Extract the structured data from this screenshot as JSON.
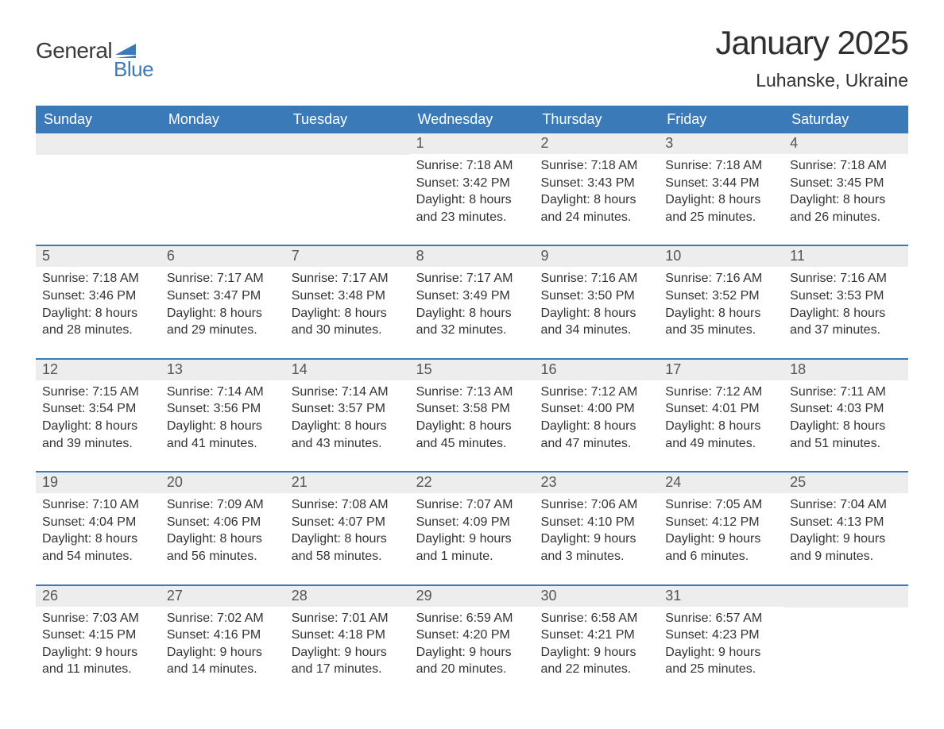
{
  "logo": {
    "text_general": "General",
    "text_blue": "Blue",
    "flag_color": "#3a7ab8"
  },
  "header": {
    "month_title": "January 2025",
    "location": "Luhanske, Ukraine"
  },
  "colors": {
    "header_bg": "#3a7ab8",
    "header_text": "#ffffff",
    "daynum_bg": "#ededed",
    "daynum_text": "#555555",
    "body_text": "#333333",
    "border": "#3a7ab8"
  },
  "weekdays": [
    "Sunday",
    "Monday",
    "Tuesday",
    "Wednesday",
    "Thursday",
    "Friday",
    "Saturday"
  ],
  "weeks": [
    [
      {
        "day": "",
        "lines": []
      },
      {
        "day": "",
        "lines": []
      },
      {
        "day": "",
        "lines": []
      },
      {
        "day": "1",
        "lines": [
          "Sunrise: 7:18 AM",
          "Sunset: 3:42 PM",
          "Daylight: 8 hours and 23 minutes."
        ]
      },
      {
        "day": "2",
        "lines": [
          "Sunrise: 7:18 AM",
          "Sunset: 3:43 PM",
          "Daylight: 8 hours and 24 minutes."
        ]
      },
      {
        "day": "3",
        "lines": [
          "Sunrise: 7:18 AM",
          "Sunset: 3:44 PM",
          "Daylight: 8 hours and 25 minutes."
        ]
      },
      {
        "day": "4",
        "lines": [
          "Sunrise: 7:18 AM",
          "Sunset: 3:45 PM",
          "Daylight: 8 hours and 26 minutes."
        ]
      }
    ],
    [
      {
        "day": "5",
        "lines": [
          "Sunrise: 7:18 AM",
          "Sunset: 3:46 PM",
          "Daylight: 8 hours and 28 minutes."
        ]
      },
      {
        "day": "6",
        "lines": [
          "Sunrise: 7:17 AM",
          "Sunset: 3:47 PM",
          "Daylight: 8 hours and 29 minutes."
        ]
      },
      {
        "day": "7",
        "lines": [
          "Sunrise: 7:17 AM",
          "Sunset: 3:48 PM",
          "Daylight: 8 hours and 30 minutes."
        ]
      },
      {
        "day": "8",
        "lines": [
          "Sunrise: 7:17 AM",
          "Sunset: 3:49 PM",
          "Daylight: 8 hours and 32 minutes."
        ]
      },
      {
        "day": "9",
        "lines": [
          "Sunrise: 7:16 AM",
          "Sunset: 3:50 PM",
          "Daylight: 8 hours and 34 minutes."
        ]
      },
      {
        "day": "10",
        "lines": [
          "Sunrise: 7:16 AM",
          "Sunset: 3:52 PM",
          "Daylight: 8 hours and 35 minutes."
        ]
      },
      {
        "day": "11",
        "lines": [
          "Sunrise: 7:16 AM",
          "Sunset: 3:53 PM",
          "Daylight: 8 hours and 37 minutes."
        ]
      }
    ],
    [
      {
        "day": "12",
        "lines": [
          "Sunrise: 7:15 AM",
          "Sunset: 3:54 PM",
          "Daylight: 8 hours and 39 minutes."
        ]
      },
      {
        "day": "13",
        "lines": [
          "Sunrise: 7:14 AM",
          "Sunset: 3:56 PM",
          "Daylight: 8 hours and 41 minutes."
        ]
      },
      {
        "day": "14",
        "lines": [
          "Sunrise: 7:14 AM",
          "Sunset: 3:57 PM",
          "Daylight: 8 hours and 43 minutes."
        ]
      },
      {
        "day": "15",
        "lines": [
          "Sunrise: 7:13 AM",
          "Sunset: 3:58 PM",
          "Daylight: 8 hours and 45 minutes."
        ]
      },
      {
        "day": "16",
        "lines": [
          "Sunrise: 7:12 AM",
          "Sunset: 4:00 PM",
          "Daylight: 8 hours and 47 minutes."
        ]
      },
      {
        "day": "17",
        "lines": [
          "Sunrise: 7:12 AM",
          "Sunset: 4:01 PM",
          "Daylight: 8 hours and 49 minutes."
        ]
      },
      {
        "day": "18",
        "lines": [
          "Sunrise: 7:11 AM",
          "Sunset: 4:03 PM",
          "Daylight: 8 hours and 51 minutes."
        ]
      }
    ],
    [
      {
        "day": "19",
        "lines": [
          "Sunrise: 7:10 AM",
          "Sunset: 4:04 PM",
          "Daylight: 8 hours and 54 minutes."
        ]
      },
      {
        "day": "20",
        "lines": [
          "Sunrise: 7:09 AM",
          "Sunset: 4:06 PM",
          "Daylight: 8 hours and 56 minutes."
        ]
      },
      {
        "day": "21",
        "lines": [
          "Sunrise: 7:08 AM",
          "Sunset: 4:07 PM",
          "Daylight: 8 hours and 58 minutes."
        ]
      },
      {
        "day": "22",
        "lines": [
          "Sunrise: 7:07 AM",
          "Sunset: 4:09 PM",
          "Daylight: 9 hours and 1 minute."
        ]
      },
      {
        "day": "23",
        "lines": [
          "Sunrise: 7:06 AM",
          "Sunset: 4:10 PM",
          "Daylight: 9 hours and 3 minutes."
        ]
      },
      {
        "day": "24",
        "lines": [
          "Sunrise: 7:05 AM",
          "Sunset: 4:12 PM",
          "Daylight: 9 hours and 6 minutes."
        ]
      },
      {
        "day": "25",
        "lines": [
          "Sunrise: 7:04 AM",
          "Sunset: 4:13 PM",
          "Daylight: 9 hours and 9 minutes."
        ]
      }
    ],
    [
      {
        "day": "26",
        "lines": [
          "Sunrise: 7:03 AM",
          "Sunset: 4:15 PM",
          "Daylight: 9 hours and 11 minutes."
        ]
      },
      {
        "day": "27",
        "lines": [
          "Sunrise: 7:02 AM",
          "Sunset: 4:16 PM",
          "Daylight: 9 hours and 14 minutes."
        ]
      },
      {
        "day": "28",
        "lines": [
          "Sunrise: 7:01 AM",
          "Sunset: 4:18 PM",
          "Daylight: 9 hours and 17 minutes."
        ]
      },
      {
        "day": "29",
        "lines": [
          "Sunrise: 6:59 AM",
          "Sunset: 4:20 PM",
          "Daylight: 9 hours and 20 minutes."
        ]
      },
      {
        "day": "30",
        "lines": [
          "Sunrise: 6:58 AM",
          "Sunset: 4:21 PM",
          "Daylight: 9 hours and 22 minutes."
        ]
      },
      {
        "day": "31",
        "lines": [
          "Sunrise: 6:57 AM",
          "Sunset: 4:23 PM",
          "Daylight: 9 hours and 25 minutes."
        ]
      },
      {
        "day": "",
        "lines": []
      }
    ]
  ]
}
